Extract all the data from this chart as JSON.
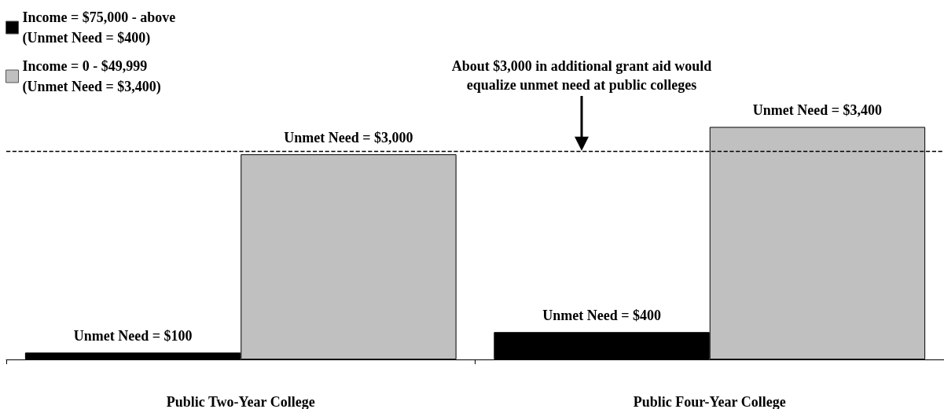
{
  "chart_data": {
    "type": "bar",
    "categories": [
      "Public Two-Year College",
      "Public Four-Year College"
    ],
    "series": [
      {
        "name": "Income = $75,000 - above\n(Unmet Need = $400)",
        "color": "#000000",
        "values": [
          100,
          400
        ],
        "value_labels": [
          "Unmet Need = $100",
          "Unmet Need = $400"
        ]
      },
      {
        "name": "Income = 0 - $49,999\n(Unmet Need = $3,400)",
        "color": "#c0c0c0",
        "values": [
          3000,
          3400
        ],
        "value_labels": [
          "Unmet Need = $3,000",
          "Unmet Need = $3,400"
        ]
      }
    ],
    "ref_lines": [
      {
        "axis": "y",
        "value": 3050,
        "color": "#000000",
        "line_style": "dashed"
      }
    ],
    "annotations": [
      "About $3,000 in additional grant aid would\nequalize unmet need at public colleges"
    ],
    "legend": "top left"
  }
}
